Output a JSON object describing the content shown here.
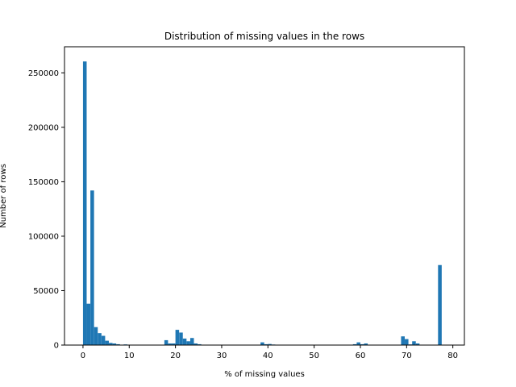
{
  "chart_data": {
    "type": "bar",
    "title": "Distribution of missing values in the rows",
    "xlabel": "% of missing values",
    "ylabel": "Number of rows",
    "xlim": [
      -4,
      82.5
    ],
    "ylim": [
      0,
      274000
    ],
    "xticks": [
      0,
      10,
      20,
      30,
      40,
      50,
      60,
      70,
      80
    ],
    "yticks": [
      0,
      50000,
      100000,
      150000,
      200000,
      250000
    ],
    "grid": false,
    "color": "#1f77b4",
    "bin_width": 0.79,
    "bins": [
      {
        "x": 0.0,
        "value": 260500
      },
      {
        "x": 0.8,
        "value": 38000
      },
      {
        "x": 1.6,
        "value": 142000
      },
      {
        "x": 2.4,
        "value": 16500
      },
      {
        "x": 3.2,
        "value": 11000
      },
      {
        "x": 4.0,
        "value": 8500
      },
      {
        "x": 4.8,
        "value": 4000
      },
      {
        "x": 5.6,
        "value": 2000
      },
      {
        "x": 6.4,
        "value": 1500
      },
      {
        "x": 7.2,
        "value": 800
      },
      {
        "x": 8.8,
        "value": 600
      },
      {
        "x": 17.6,
        "value": 4500
      },
      {
        "x": 18.4,
        "value": 1500
      },
      {
        "x": 19.2,
        "value": 1500
      },
      {
        "x": 20.0,
        "value": 14000
      },
      {
        "x": 20.8,
        "value": 11500
      },
      {
        "x": 21.6,
        "value": 6000
      },
      {
        "x": 22.4,
        "value": 3500
      },
      {
        "x": 23.2,
        "value": 6500
      },
      {
        "x": 24.0,
        "value": 1500
      },
      {
        "x": 24.8,
        "value": 800
      },
      {
        "x": 38.4,
        "value": 2500
      },
      {
        "x": 39.2,
        "value": 800
      },
      {
        "x": 40.0,
        "value": 1000
      },
      {
        "x": 40.8,
        "value": 500
      },
      {
        "x": 58.4,
        "value": 800
      },
      {
        "x": 59.2,
        "value": 2500
      },
      {
        "x": 60.0,
        "value": 800
      },
      {
        "x": 60.8,
        "value": 1500
      },
      {
        "x": 68.8,
        "value": 8000
      },
      {
        "x": 69.6,
        "value": 5500
      },
      {
        "x": 70.4,
        "value": 600
      },
      {
        "x": 71.2,
        "value": 3500
      },
      {
        "x": 72.0,
        "value": 1500
      },
      {
        "x": 76.8,
        "value": 73500
      }
    ]
  }
}
